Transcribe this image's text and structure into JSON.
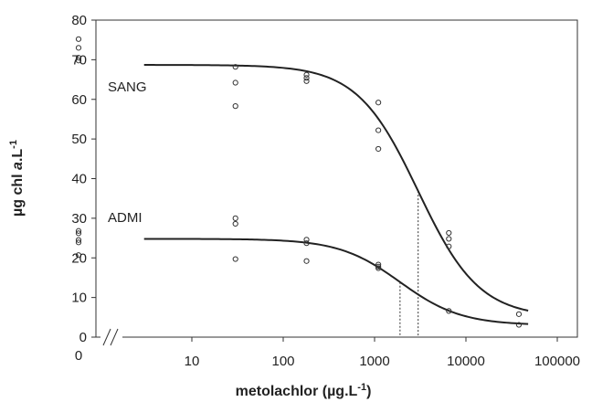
{
  "chart_data": {
    "type": "scatter",
    "xlabel": "metolachlor (µg.L",
    "xlabel_sup": "-1",
    "xlabel_close": ")",
    "ylabel": "µg chl ",
    "ylabel_italic": "a",
    "ylabel_mid": ".L",
    "ylabel_sup": "-1",
    "x_scale": "log",
    "xlim": [
      1,
      100000
    ],
    "ylim": [
      0,
      80
    ],
    "x_ticks": [
      {
        "value": 10,
        "label": "10"
      },
      {
        "value": 100,
        "label": "100"
      },
      {
        "value": 1000,
        "label": "1000"
      },
      {
        "value": 10000,
        "label": "10000"
      },
      {
        "value": 100000,
        "label": "100000"
      }
    ],
    "zero_tick_label": "0",
    "y_ticks": [
      {
        "value": 0,
        "label": "0"
      },
      {
        "value": 10,
        "label": "10"
      },
      {
        "value": 20,
        "label": "20"
      },
      {
        "value": 30,
        "label": "30"
      },
      {
        "value": 40,
        "label": "40"
      },
      {
        "value": 50,
        "label": "50"
      },
      {
        "value": 60,
        "label": "60"
      },
      {
        "value": 70,
        "label": "70"
      },
      {
        "value": 80,
        "label": "80"
      }
    ],
    "axis_break": true,
    "grid": false,
    "series": [
      {
        "name": "SANG",
        "control_points": [
          75.2,
          73.0,
          70.5,
          69.8
        ],
        "points": [
          {
            "x": 30,
            "y": 68.2
          },
          {
            "x": 30,
            "y": 64.2
          },
          {
            "x": 30,
            "y": 58.3
          },
          {
            "x": 180,
            "y": 66.2
          },
          {
            "x": 180,
            "y": 65.4
          },
          {
            "x": 180,
            "y": 64.6
          },
          {
            "x": 1100,
            "y": 59.2
          },
          {
            "x": 1100,
            "y": 52.2
          },
          {
            "x": 1100,
            "y": 47.5
          },
          {
            "x": 6500,
            "y": 26.3
          },
          {
            "x": 6500,
            "y": 24.8
          },
          {
            "x": 6500,
            "y": 22.9
          }
        ],
        "fit": {
          "top": 68.7,
          "bottom": 5.0,
          "ec50": 3000,
          "slope": 1.3,
          "x_from": 3,
          "x_to": 48000
        },
        "ec50_value": 3000
      },
      {
        "name": "ADMI",
        "control_points": [
          26.8,
          26.2,
          24.5,
          23.9,
          20.7
        ],
        "points": [
          {
            "x": 30,
            "y": 30.0
          },
          {
            "x": 30,
            "y": 28.6
          },
          {
            "x": 30,
            "y": 19.7
          },
          {
            "x": 180,
            "y": 24.6
          },
          {
            "x": 180,
            "y": 23.7
          },
          {
            "x": 180,
            "y": 19.2
          },
          {
            "x": 1100,
            "y": 18.3
          },
          {
            "x": 1100,
            "y": 17.8
          },
          {
            "x": 1100,
            "y": 17.4
          },
          {
            "x": 6500,
            "y": 6.6
          },
          {
            "x": 38000,
            "y": 5.8
          },
          {
            "x": 38000,
            "y": 3.1
          }
        ],
        "fit": {
          "top": 24.8,
          "bottom": 3.0,
          "ec50": 1900,
          "slope": 1.3,
          "x_from": 3,
          "x_to": 48000
        },
        "ec50_value": 1900
      }
    ]
  }
}
